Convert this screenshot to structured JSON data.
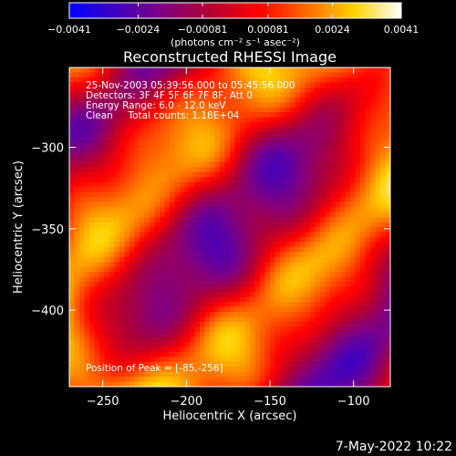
{
  "chart_data": {
    "type": "heatmap",
    "title": "Reconstructed RHESSI Image",
    "xlabel": "Heliocentric X (arcsec)",
    "ylabel": "Heliocentric Y (arcsec)",
    "xlim": [
      -270,
      -78
    ],
    "ylim": [
      -447,
      -251
    ],
    "x_ticks": [
      -250,
      -200,
      -150,
      -100
    ],
    "x_tick_labels": [
      "−250",
      "−200",
      "−150",
      "−100"
    ],
    "y_ticks": [
      -300,
      -350,
      -400
    ],
    "y_tick_labels": [
      "−300",
      "−350",
      "−400"
    ],
    "grid": false,
    "colorbar": {
      "min": -0.0041,
      "max": 0.0041,
      "ticks": [
        -0.0041,
        -0.0024,
        -0.00081,
        0.00081,
        0.0024,
        0.0041
      ],
      "tick_labels": [
        "−0.0041",
        "−0.0024",
        "−0.00081",
        "0.00081",
        "0.0024",
        "0.0041"
      ],
      "units_label": "(photons cm⁻² s⁻¹ asec⁻²)",
      "colormap": [
        "#0000ff",
        "#4000c0",
        "#800080",
        "#b40030",
        "#ff0000",
        "#ff6a00",
        "#ffd200",
        "#ffffff"
      ]
    },
    "annotations": [
      "25-Nov-2003 05:39:56.000 to 05:45:56.000",
      "Detectors: 3F 4F 5F 6F 7F 8F, Att 0",
      "Energy Range: 6.0 - 12.0 keV",
      "Clean     Total counts: 1.18E+04"
    ],
    "peak_label": "Position of Peak = [-85,-256]",
    "peak_position": [
      -85,
      -256
    ],
    "footer_date": "7-May-2022 10:22"
  }
}
